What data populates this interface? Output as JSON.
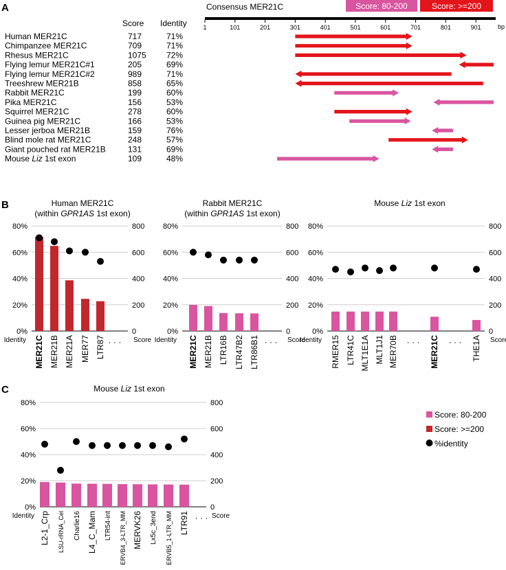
{
  "colors": {
    "low": "#d9559f",
    "high": "#c0282e",
    "arrow_high": "#e3151b",
    "dot": "#000000",
    "axis": "#000000",
    "grid": "#cccccc"
  },
  "panel_a": {
    "letter": "A",
    "score_header": "Score",
    "identity_header": "Identity",
    "consensus_label": "Consensus MER21C",
    "legend_low": "Score: 80-200",
    "legend_high": "Score: >=200",
    "ticks": [
      "1",
      "101",
      "201",
      "301",
      "401",
      "501",
      "601",
      "701",
      "801",
      "901"
    ],
    "bp_label": "bp",
    "chart_data": {
      "type": "alignment-map",
      "axis_range_bp": [
        1,
        960
      ],
      "rows": [
        {
          "name": "Human MER21C",
          "score": "717",
          "identity": "71%",
          "start": 301,
          "end": 690,
          "dir": "+",
          "cls": "high"
        },
        {
          "name": "Chimpanzee MER21C",
          "score": "709",
          "identity": "71%",
          "start": 301,
          "end": 690,
          "dir": "+",
          "cls": "high"
        },
        {
          "name": "Rhesus MER21C",
          "score": "1075",
          "identity": "72%",
          "start": 301,
          "end": 870,
          "dir": "+",
          "cls": "high"
        },
        {
          "name": "Flying lemur MER21C#1",
          "score": "205",
          "identity": "69%",
          "start": 845,
          "end": 960,
          "dir": "-",
          "cls": "high"
        },
        {
          "name": "Flying lemur MER21C#2",
          "score": "989",
          "identity": "71%",
          "start": 301,
          "end": 820,
          "dir": "-",
          "cls": "high"
        },
        {
          "name": "Treeshrew MER21B",
          "score": "858",
          "identity": "65%",
          "start": 301,
          "end": 925,
          "dir": "-",
          "cls": "high"
        },
        {
          "name": "Rabbit MER21C",
          "score": "199",
          "identity": "60%",
          "start": 431,
          "end": 645,
          "dir": "+",
          "cls": "low"
        },
        {
          "name": "Pika MER21C",
          "score": "156",
          "identity": "53%",
          "start": 760,
          "end": 960,
          "dir": "-",
          "cls": "low"
        },
        {
          "name": "Squirrel MER21C",
          "score": "278",
          "identity": "60%",
          "start": 431,
          "end": 690,
          "dir": "+",
          "cls": "high"
        },
        {
          "name": "Guinea pig MER21C",
          "score": "166",
          "identity": "53%",
          "start": 481,
          "end": 685,
          "dir": "+",
          "cls": "low"
        },
        {
          "name": "Lesser jerboa MER21B",
          "score": "159",
          "identity": "76%",
          "start": 755,
          "end": 825,
          "dir": "-",
          "cls": "low"
        },
        {
          "name": "Blind mole rat MER21C",
          "score": "248",
          "identity": "57%",
          "start": 611,
          "end": 875,
          "dir": "+",
          "cls": "high"
        },
        {
          "name": "Giant pouched rat MER21B",
          "score": "131",
          "identity": "69%",
          "start": 755,
          "end": 825,
          "dir": "-",
          "cls": "low"
        },
        {
          "name": "Mouse Liz 1st exon",
          "score": "109",
          "identity": "48%",
          "start": 241,
          "end": 580,
          "dir": "+",
          "cls": "low"
        }
      ]
    }
  },
  "panel_b": {
    "letter": "B",
    "left_tick_labels": [
      "0%",
      "20%",
      "40%",
      "60%",
      "80%"
    ],
    "right_tick_labels": [
      "0",
      "200",
      "400",
      "600",
      "800"
    ],
    "identity_label": "Identity",
    "score_label": "Score",
    "ellipsis": "· · ·"
  },
  "panel_c": {
    "letter": "C",
    "title": "Mouse Liz 1st exon",
    "left_tick_labels": [
      "0%",
      "20%",
      "40%",
      "60%",
      "80%"
    ],
    "right_tick_labels": [
      "0",
      "200",
      "400",
      "600",
      "800"
    ],
    "identity_label": "Identity",
    "score_label": "Score",
    "ellipsis": "· · ·"
  },
  "legend": {
    "low_label": "Score: 80-200",
    "high_label": "Score: >=200",
    "identity_label": "%identity"
  },
  "chart_data": [
    {
      "type": "bar+scatter",
      "title": "Human MER21C (within GPR1AS 1st exon)",
      "ylabel_left": "Identity",
      "ylim_left": [
        0,
        80
      ],
      "ylabel_right": "Score",
      "ylim_right": [
        0,
        800
      ],
      "categories": [
        "MER21C",
        "MER21B",
        "MER21A",
        "MER77",
        "LTR87"
      ],
      "bold": [
        true,
        false,
        false,
        false,
        false
      ],
      "score": [
        717,
        648,
        386,
        245,
        227
      ],
      "identity": [
        71,
        68,
        61,
        60,
        53
      ],
      "score_class": "high"
    },
    {
      "type": "bar+scatter",
      "title": "Rabbit MER21C (within GPR1AS 1st exon)",
      "ylabel_left": "Identity",
      "ylim_left": [
        0,
        80
      ],
      "ylabel_right": "Score",
      "ylim_right": [
        0,
        800
      ],
      "categories": [
        "MER21C",
        "MER21B",
        "LTR16B",
        "LTR47B2",
        "LTR86B1"
      ],
      "bold": [
        true,
        false,
        false,
        false,
        false
      ],
      "score": [
        199,
        190,
        137,
        135,
        134
      ],
      "identity": [
        60,
        58,
        54,
        54,
        54
      ],
      "score_class": "low"
    },
    {
      "type": "bar+scatter",
      "title": "Mouse Liz 1st exon",
      "ylabel_left": "Identity",
      "ylim_left": [
        0,
        80
      ],
      "ylabel_right": "Score",
      "ylim_right": [
        0,
        800
      ],
      "categories": [
        "RMER15",
        "LTR41C",
        "MLT1E1A",
        "MLT1J1",
        "MER70B",
        "MER21C",
        "THE1A"
      ],
      "bold": [
        false,
        false,
        false,
        false,
        false,
        true,
        false
      ],
      "score": [
        148,
        148,
        148,
        148,
        148,
        109,
        84
      ],
      "identity": [
        47,
        45,
        48,
        46,
        48,
        48,
        47
      ],
      "score_class": "low"
    },
    {
      "type": "bar+scatter",
      "title": "Mouse Liz 1st exon",
      "ylabel_left": "Identity",
      "ylim_left": [
        0,
        80
      ],
      "ylabel_right": "Score",
      "ylim_right": [
        0,
        800
      ],
      "categories": [
        "L2-1_Crp",
        "LSU-rRNA_Cel",
        "Charlie16",
        "L4_C_Mam",
        "LTR54-int",
        "ERVB4_3-LTR_MM",
        "MERVK26",
        "Lx5c_3end",
        "ERVB5_1-LTR_MM",
        "LTR91"
      ],
      "bold": [
        false,
        false,
        false,
        false,
        false,
        false,
        false,
        false,
        false,
        false
      ],
      "score": [
        190,
        186,
        178,
        177,
        176,
        174,
        173,
        172,
        171,
        170
      ],
      "identity": [
        48,
        28,
        50,
        47,
        47,
        47,
        47,
        47,
        46,
        52
      ],
      "score_class": "low"
    }
  ]
}
